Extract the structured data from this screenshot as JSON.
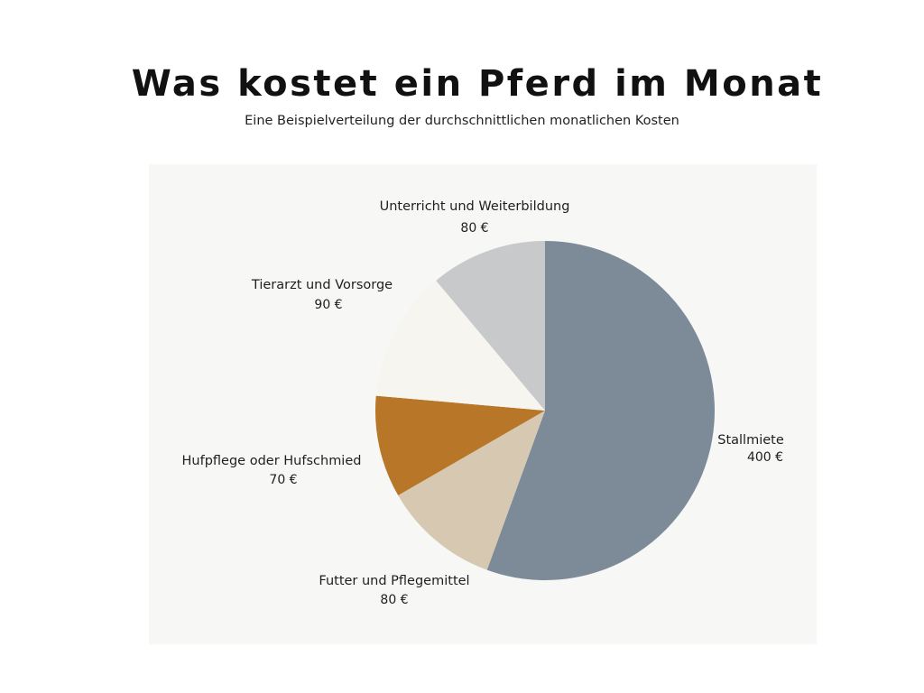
{
  "title": "Was kostet ein Pferd im Monat",
  "subtitle": "Eine Beispielverteilung der durchschnittlichen monatlichen Kosten",
  "chart_data": {
    "type": "pie",
    "title": "Was kostet ein Pferd im Monat",
    "subtitle": "Eine Beispielverteilung der durchschnittlichen monatlichen Kosten",
    "unit": "€",
    "start": "top",
    "direction": "clockwise",
    "slices": [
      {
        "label": "Stallmiete",
        "value": 400,
        "value_label": "400 €",
        "color": "#7d8b99"
      },
      {
        "label": "Futter und Pflegemittel",
        "value": 80,
        "value_label": "80 €",
        "color": "#d6c8b1"
      },
      {
        "label": "Hufpflege oder Hufschmied",
        "value": 70,
        "value_label": "70 €",
        "color": "#b87629"
      },
      {
        "label": "Tierarzt und Vorsorge",
        "value": 90,
        "value_label": "90 €",
        "color": "#f7f5ef"
      },
      {
        "label": "Unterricht und Weiterbildung",
        "value": 80,
        "value_label": "80 €",
        "color": "#c8c9ca"
      }
    ]
  }
}
